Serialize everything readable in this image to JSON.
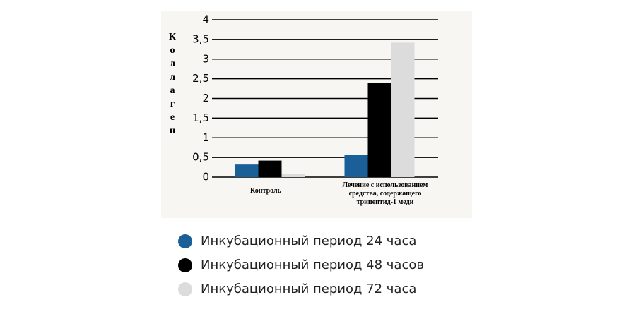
{
  "chart_data": {
    "type": "bar",
    "y_label": "Коллаген",
    "categories": [
      "Контроль",
      "Лечение с использованием средства, содержащего трипептид-1 меди"
    ],
    "series": [
      {
        "name": "Инкубационный период 24 часа",
        "color": "#1b5f98",
        "values": [
          0.32,
          0.57
        ]
      },
      {
        "name": "Инкубационный период 48 часов",
        "color": "#000000",
        "values": [
          0.42,
          2.4
        ]
      },
      {
        "name": "Инкубационный период 72 часа",
        "color": "#dcdcdc",
        "values": [
          0.08,
          3.42
        ]
      }
    ],
    "ylim": [
      0,
      4
    ],
    "yticks": [
      0,
      {
        "value": 0.5,
        "label": "0,5"
      },
      1,
      {
        "value": 1.5,
        "label": "1,5"
      },
      2,
      {
        "value": 2.5,
        "label": "2,5"
      },
      3,
      {
        "value": 3.5,
        "label": "3,5"
      },
      4
    ],
    "grid": true
  }
}
